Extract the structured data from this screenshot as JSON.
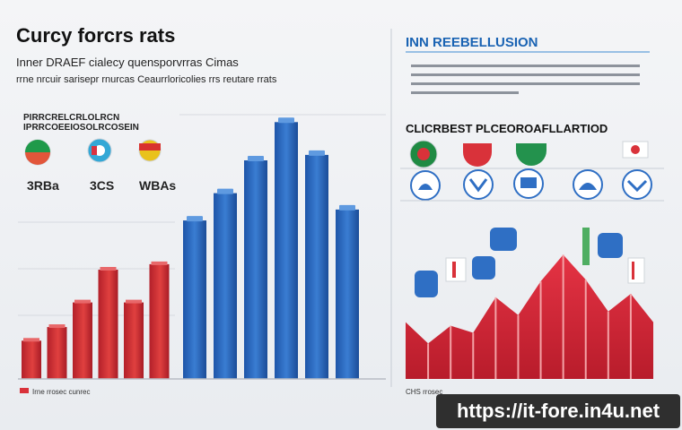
{
  "header": {
    "title": "Curcy forcrs rats",
    "subtitle_line1": "Inner DRAEF cialecy quensporvrras Cimas",
    "subtitle_line2": "rrne nrcuir sarisepr rnurcas Ceaurrloricolies rrs reutare rrats"
  },
  "left_panel": {
    "legend_title_line1": "PIRRCRELCRLOLRCN",
    "legend_title_line2": "IPRRCOEEIOSOLRCOSEIN",
    "flag_values": [
      "3RBa",
      "3CS",
      "WBAs"
    ],
    "footnote": "Irne rrosec cunrec"
  },
  "right_panel": {
    "title": "INN REEBELLUSION",
    "subtitle": "CLICRBEST PLCEOROAFLLARTIOD",
    "footnote": "CHS rrosec"
  },
  "watermark": {
    "url": "https://it-fore.in4u.net"
  },
  "colors": {
    "red": "#d9323a",
    "blue": "#2f6fc4",
    "dark": "#1a1a1a"
  },
  "chart_data": [
    {
      "type": "bar",
      "series": [
        {
          "color": "#d9323a",
          "values": [
            14,
            19,
            28,
            40,
            28,
            42
          ]
        },
        {
          "color": "#2f6fc4",
          "values": [
            58,
            68,
            80,
            94,
            82,
            62
          ]
        }
      ],
      "ylim": [
        0,
        100
      ]
    },
    {
      "type": "area",
      "values": [
        32,
        20,
        30,
        26,
        46,
        36,
        55,
        70,
        56,
        38,
        48,
        32
      ],
      "ylim": [
        0,
        100
      ]
    }
  ]
}
